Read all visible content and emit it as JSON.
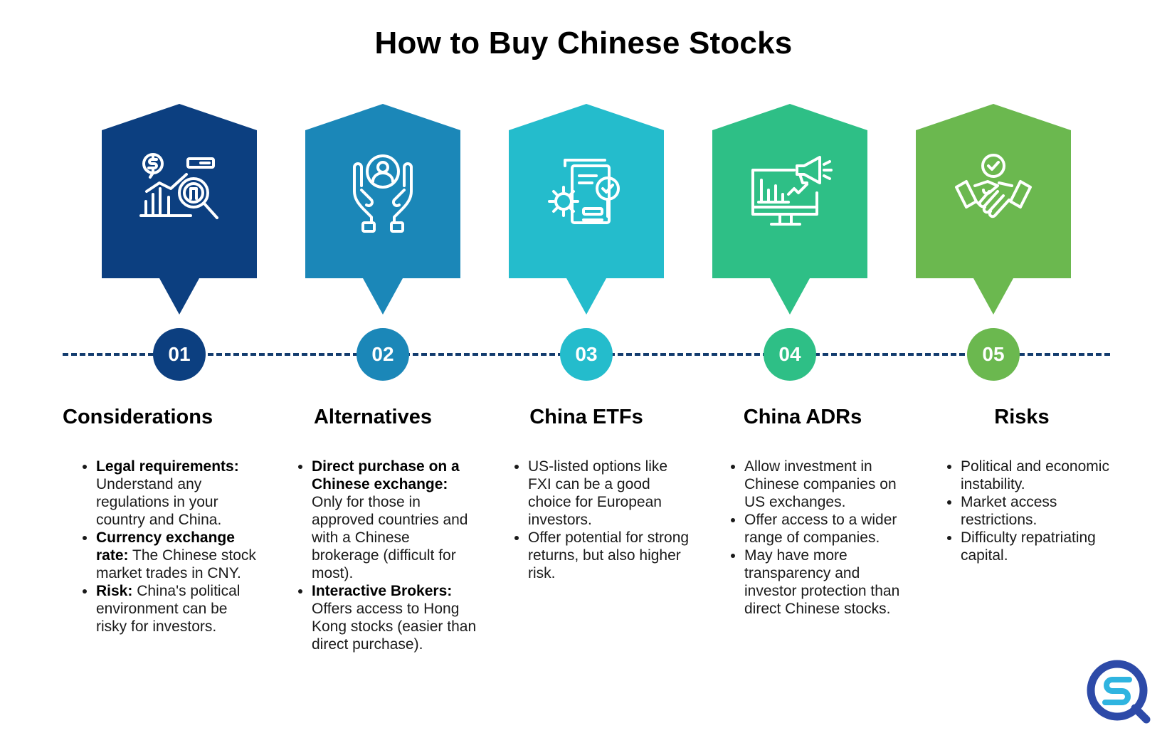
{
  "title": "How to Buy Chinese Stocks",
  "colors": {
    "step1": "#0c3f80",
    "step2": "#1b87b8",
    "step3": "#24bccc",
    "step4": "#2ebf86",
    "step5": "#6bb84f",
    "timeline": "#133c6e",
    "logo_blue": "#2d4aa8",
    "logo_cyan": "#2fb4e0"
  },
  "steps": [
    {
      "number": "01",
      "heading": "Considerations",
      "icon": "financial-analysis-icon",
      "bullets": [
        {
          "bold": "Legal requirements:",
          "text": " Understand any regulations in your country and China."
        },
        {
          "bold": "Currency exchange rate:",
          "text": " The Chinese stock market trades in CNY."
        },
        {
          "bold": "Risk:",
          "text": " China's political environment can be risky for investors."
        }
      ]
    },
    {
      "number": "02",
      "heading": "Alternatives",
      "icon": "hands-holding-person-icon",
      "bullets": [
        {
          "bold": "Direct purchase on a Chinese exchange:",
          "text": " Only for those in approved countries and with a Chinese brokerage (difficult for most)."
        },
        {
          "bold": "Interactive Brokers:",
          "text": " Offers access to Hong Kong stocks (easier than direct purchase)."
        }
      ]
    },
    {
      "number": "03",
      "heading": "China ETFs",
      "icon": "gear-document-check-icon",
      "bullets": [
        {
          "bold": "",
          "text": "US-listed options like FXI can be a good choice for European investors."
        },
        {
          "bold": "",
          "text": "Offer potential for strong returns, but also higher risk."
        }
      ]
    },
    {
      "number": "04",
      "heading": "China ADRs",
      "icon": "monitor-chart-megaphone-icon",
      "bullets": [
        {
          "bold": "",
          "text": "Allow investment in Chinese companies on US exchanges."
        },
        {
          "bold": "",
          "text": "Offer access to a wider range of companies."
        },
        {
          "bold": "",
          "text": "May have more transparency and investor protection than direct Chinese stocks."
        }
      ]
    },
    {
      "number": "05",
      "heading": "Risks",
      "icon": "handshake-check-icon",
      "bullets": [
        {
          "bold": "",
          "text": "Political and economic instability."
        },
        {
          "bold": "",
          "text": "Market access restrictions."
        },
        {
          "bold": "",
          "text": "Difficulty repatriating capital."
        }
      ]
    }
  ],
  "logo": {
    "icon": "sq-magnifier-logo-icon"
  }
}
